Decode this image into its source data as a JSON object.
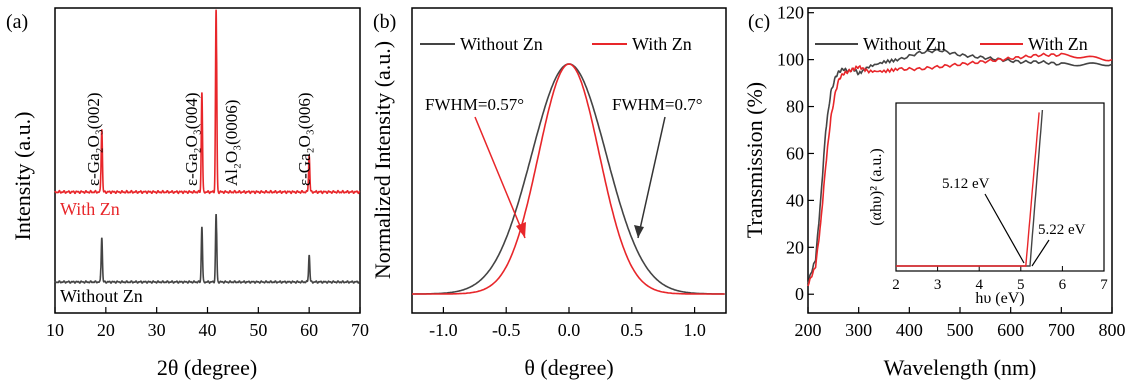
{
  "colors": {
    "without": "#444444",
    "with": "#e8262a",
    "axis": "#000000"
  },
  "chart_data": [
    {
      "type": "line",
      "panel": "(a)",
      "xlabel": "2θ (degree)",
      "ylabel": "Intensity (a.u.)",
      "xlim": [
        10,
        70
      ],
      "xticks": [
        10,
        20,
        30,
        40,
        50,
        60,
        70
      ],
      "series": [
        {
          "name": "Without Zn",
          "peaks": [
            [
              19.2,
              0.3
            ],
            [
              38.9,
              0.37
            ],
            [
              41.7,
              0.45
            ],
            [
              60.0,
              0.18
            ]
          ]
        },
        {
          "name": "With Zn",
          "peaks": [
            [
              19.2,
              0.35
            ],
            [
              38.9,
              0.55
            ],
            [
              41.7,
              1.0
            ],
            [
              60.0,
              0.2
            ]
          ]
        }
      ],
      "annotations": [
        {
          "text": "ε-Ga₂O₃(002)",
          "x": 19.2
        },
        {
          "text": "ε-Ga₂O₃(004)",
          "x": 38.9
        },
        {
          "text": "Al₂O₃(0006)",
          "x": 41.7
        },
        {
          "text": "ε-Ga₂O₃(006)",
          "x": 60.0
        }
      ]
    },
    {
      "type": "line",
      "panel": "(b)",
      "xlabel": "θ (degree)",
      "ylabel": "Normalized Intensity (a.u.)",
      "xlim": [
        -1.25,
        1.25
      ],
      "xticks": [
        -1.0,
        -0.5,
        0.0,
        0.5,
        1.0
      ],
      "series": [
        {
          "name": "Without Zn",
          "fwhm": 0.7
        },
        {
          "name": "With Zn",
          "fwhm": 0.57
        }
      ],
      "annotations": [
        "FWHM=0.57°",
        "FWHM=0.7°"
      ]
    },
    {
      "type": "line",
      "panel": "(c)",
      "xlabel": "Wavelength (nm)",
      "ylabel": "Transmission (%)",
      "xlim": [
        200,
        800
      ],
      "ylim": [
        -8,
        122
      ],
      "xticks": [
        200,
        300,
        400,
        500,
        600,
        700,
        800
      ],
      "yticks": [
        0,
        20,
        40,
        60,
        80,
        100,
        120
      ],
      "series": [
        {
          "name": "Without Zn",
          "x": [
            200,
            215,
            225,
            235,
            245,
            255,
            262,
            270,
            280,
            290,
            300,
            320,
            350,
            380,
            420,
            460,
            500,
            540,
            580,
            620,
            660,
            700,
            750,
            800
          ],
          "y": [
            5,
            15,
            40,
            70,
            86,
            93,
            95,
            96,
            95,
            96,
            94,
            97,
            99,
            100,
            103,
            104,
            102,
            101,
            100,
            99,
            99,
            98,
            98,
            98
          ]
        },
        {
          "name": "With Zn",
          "x": [
            200,
            215,
            225,
            235,
            245,
            255,
            262,
            270,
            280,
            290,
            300,
            320,
            350,
            380,
            420,
            460,
            500,
            540,
            580,
            620,
            660,
            700,
            750,
            800
          ],
          "y": [
            4,
            12,
            30,
            55,
            75,
            87,
            92,
            94,
            95,
            96,
            97,
            95,
            95,
            96,
            96,
            97,
            98,
            99,
            100,
            101,
            102,
            102,
            101,
            100
          ]
        }
      ],
      "inset": {
        "xlabel": "hυ (eV)",
        "ylabel": "(αhυ)² (a.u.)",
        "xlim": [
          2,
          7
        ],
        "xticks": [
          2,
          3,
          4,
          5,
          6,
          7
        ],
        "annotations": [
          {
            "text": "5.12 eV",
            "x": 5.12
          },
          {
            "text": "5.22 eV",
            "x": 5.22
          }
        ]
      }
    }
  ],
  "panel_labels": [
    "(a)",
    "(b)",
    "(c)"
  ],
  "legend": {
    "without": "Without Zn",
    "with": "With Zn"
  }
}
